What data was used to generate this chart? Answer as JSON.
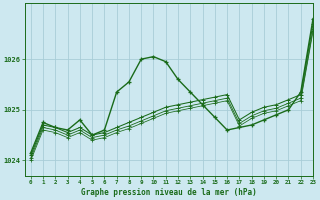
{
  "xlabel": "Graphe pression niveau de la mer (hPa)",
  "ylim": [
    1023.7,
    1027.1
  ],
  "xlim": [
    -0.5,
    23
  ],
  "xticks": [
    0,
    1,
    2,
    3,
    4,
    5,
    6,
    7,
    8,
    9,
    10,
    11,
    12,
    13,
    14,
    15,
    16,
    17,
    18,
    19,
    20,
    21,
    22,
    23
  ],
  "yticks": [
    1024,
    1025,
    1026
  ],
  "background_color": "#cde8f0",
  "grid_color": "#a8cdd8",
  "line_color": "#1a6b1a",
  "line_main": {
    "x": [
      0,
      1,
      2,
      3,
      4,
      5,
      6,
      7,
      8,
      9,
      10,
      11,
      12,
      13,
      14,
      15,
      16,
      17,
      18,
      19,
      20,
      21,
      22,
      23
    ],
    "y": [
      1024.15,
      1024.75,
      1024.65,
      1024.6,
      1024.8,
      1024.5,
      1024.6,
      1025.35,
      1025.55,
      1026.0,
      1026.05,
      1025.95,
      1025.6,
      1025.35,
      1025.1,
      1024.85,
      1024.6,
      1024.65,
      1024.7,
      1024.8,
      1024.9,
      1025.0,
      1025.35,
      1026.8
    ]
  },
  "line_smooth": {
    "x": [
      0,
      1,
      2,
      3,
      4,
      5,
      6,
      7,
      8,
      9,
      10,
      11,
      12,
      13,
      14,
      15,
      16,
      17,
      18,
      19,
      20,
      21,
      22,
      23
    ],
    "y": [
      1024.1,
      1024.7,
      1024.65,
      1024.55,
      1024.65,
      1024.5,
      1024.55,
      1024.65,
      1024.75,
      1024.85,
      1024.95,
      1025.05,
      1025.1,
      1025.15,
      1025.2,
      1025.25,
      1025.3,
      1024.8,
      1024.95,
      1025.05,
      1025.1,
      1025.2,
      1025.3,
      1026.7
    ]
  },
  "line_flat1": {
    "x": [
      0,
      1,
      2,
      3,
      4,
      5,
      6,
      7,
      8,
      9,
      10,
      11,
      12,
      13,
      14,
      15,
      16,
      17,
      18,
      19,
      20,
      21,
      22,
      23
    ],
    "y": [
      1024.05,
      1024.65,
      1024.6,
      1024.5,
      1024.6,
      1024.45,
      1024.5,
      1024.6,
      1024.68,
      1024.78,
      1024.88,
      1024.98,
      1025.03,
      1025.08,
      1025.13,
      1025.18,
      1025.23,
      1024.73,
      1024.88,
      1024.98,
      1025.03,
      1025.13,
      1025.23,
      1026.6
    ]
  },
  "line_flat2": {
    "x": [
      0,
      1,
      2,
      3,
      4,
      5,
      6,
      7,
      8,
      9,
      10,
      11,
      12,
      13,
      14,
      15,
      16,
      17,
      18,
      19,
      20,
      21,
      22,
      23
    ],
    "y": [
      1024.0,
      1024.6,
      1024.55,
      1024.45,
      1024.55,
      1024.4,
      1024.45,
      1024.55,
      1024.63,
      1024.73,
      1024.83,
      1024.93,
      1024.98,
      1025.03,
      1025.08,
      1025.13,
      1025.18,
      1024.68,
      1024.83,
      1024.93,
      1024.98,
      1025.08,
      1025.18,
      1026.55
    ]
  }
}
